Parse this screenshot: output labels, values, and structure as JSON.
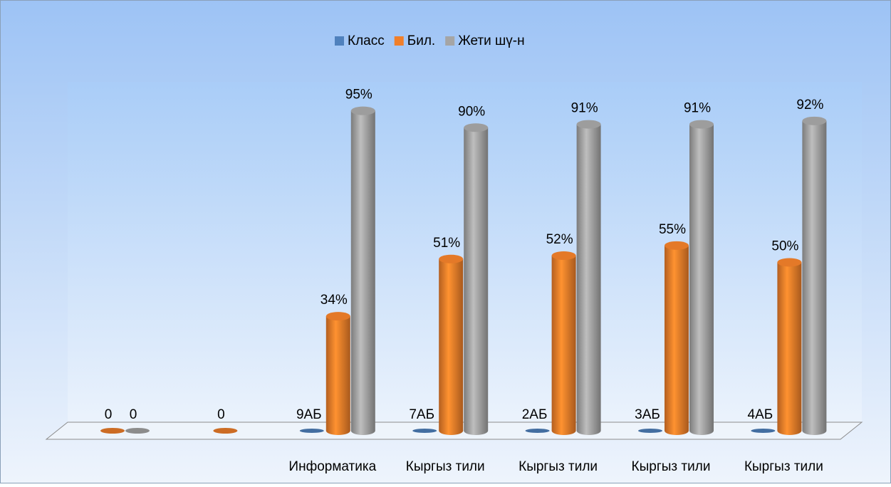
{
  "chart_data": {
    "type": "bar3d",
    "categories": [
      null,
      null,
      "Информатика",
      "Кыргыз тили",
      "Кыргыз тили",
      "Кыргыз тили",
      "Кыргыз тили"
    ],
    "series": [
      {
        "name": "Класс",
        "color": "#4f81bd",
        "values": [
          null,
          null,
          0,
          0,
          0,
          0,
          0
        ],
        "labels": [
          null,
          null,
          "9АБ",
          "7АБ",
          "2АБ",
          "3АБ",
          "4АБ"
        ]
      },
      {
        "name": "Бил.",
        "color": "#f07f2a",
        "values": [
          0,
          0,
          34,
          51,
          52,
          55,
          50
        ],
        "value_labels": [
          "0",
          "0",
          "34%",
          "51%",
          "52%",
          "55%",
          "50%"
        ]
      },
      {
        "name": "Жети шү-н",
        "color": "#a5a5a5",
        "values": [
          0,
          null,
          95,
          90,
          91,
          91,
          92
        ],
        "value_labels": [
          "0",
          null,
          "95%",
          "90%",
          "91%",
          "91%",
          "92%"
        ]
      }
    ],
    "ylim": [
      0,
      100
    ],
    "legend": "top"
  }
}
